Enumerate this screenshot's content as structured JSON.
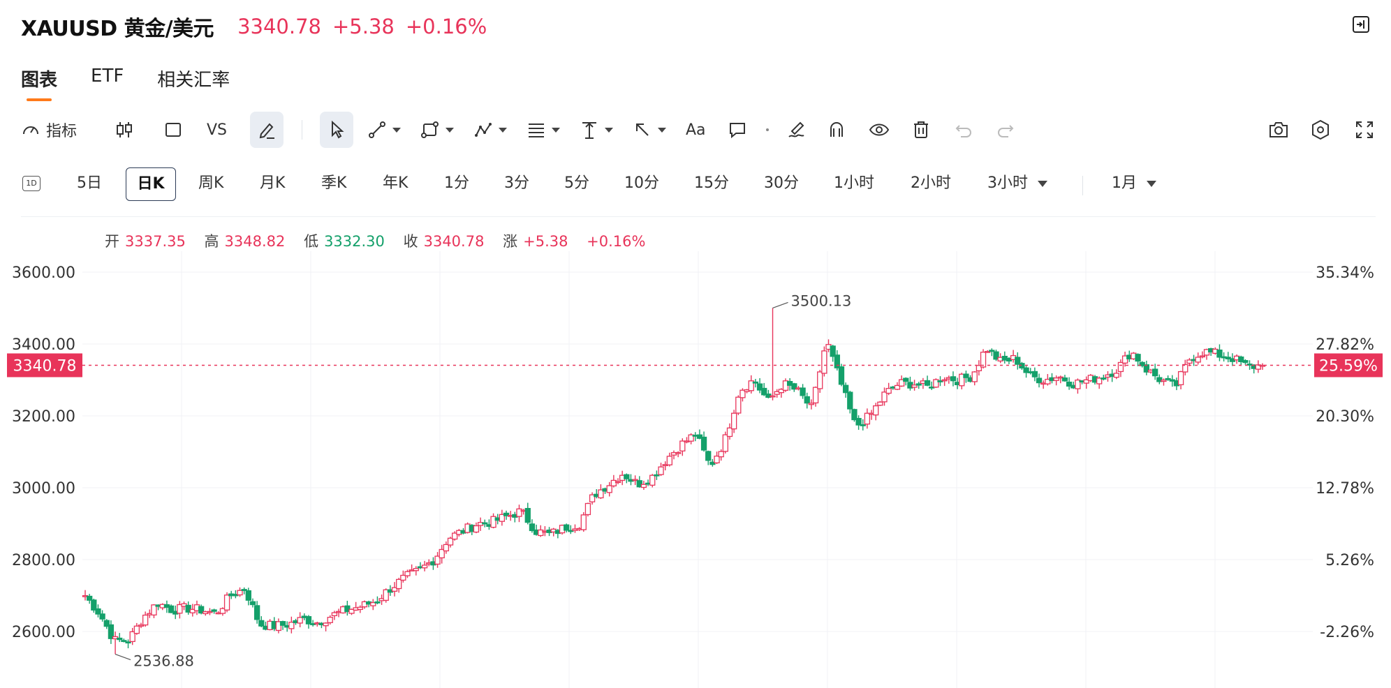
{
  "header": {
    "symbol": "XAUUSD 黄金/美元",
    "price": "3340.78",
    "change": "+5.38",
    "change_pct": "+0.16%",
    "collapse_icon": "collapse-panel-icon"
  },
  "tabs": [
    {
      "label": "图表",
      "active": true
    },
    {
      "label": "ETF",
      "active": false
    },
    {
      "label": "相关汇率",
      "active": false
    }
  ],
  "toolbar": {
    "indicators_label": "指标",
    "vs_label": "VS",
    "text_label": "Aa",
    "icons": [
      "gauge-icon",
      "candlestick-type-icon",
      "square-icon",
      "vs-compare",
      "draw-pen-icon",
      "cursor-icon",
      "trend-line-icon",
      "shape-icon",
      "pattern-icon",
      "fib-icon",
      "measure-icon",
      "arrow-icon",
      "text-icon",
      "comment-icon",
      "brush-icon",
      "magnet-icon",
      "eye-icon",
      "trash-icon",
      "undo-icon",
      "redo-icon",
      "camera-icon",
      "settings-icon",
      "fullscreen-icon"
    ]
  },
  "periods": {
    "icon_label": "1D",
    "items": [
      "5日",
      "日K",
      "周K",
      "月K",
      "季K",
      "年K",
      "1分",
      "3分",
      "5分",
      "10分",
      "15分",
      "30分",
      "1小时",
      "2小时",
      "3小时",
      "1月"
    ],
    "active": "日K"
  },
  "ohlc": {
    "open_label": "开",
    "open": "3337.35",
    "high_label": "高",
    "high": "3348.82",
    "low_label": "低",
    "low": "3332.30",
    "close_label": "收",
    "close": "3340.78",
    "chg_label": "涨",
    "chg": "+5.38",
    "chg_pct": "+0.16%"
  },
  "colors": {
    "up": "#e8345a",
    "down": "#14a06a",
    "accent": "#ff7a1a",
    "grid": "#f0f2f5"
  },
  "chart_data": {
    "type": "candlestick",
    "y_ticks_left": [
      "3600.00",
      "3400.00",
      "3200.00",
      "3000.00",
      "2800.00",
      "2600.00"
    ],
    "y_ticks_right": [
      "35.34%",
      "27.82%",
      "20.30%",
      "12.78%",
      "5.26%",
      "-2.26%"
    ],
    "ylim": [
      2500,
      3650
    ],
    "current_price": 3340.78,
    "current_price_label": "3340.78",
    "current_pct_label": "25.59%",
    "max_label": "3500.13",
    "min_label": "2536.88",
    "close_anchors": [
      2700,
      2650,
      2575,
      2575,
      2640,
      2680,
      2660,
      2665,
      2660,
      2650,
      2700,
      2720,
      2620,
      2615,
      2620,
      2635,
      2625,
      2645,
      2660,
      2670,
      2685,
      2720,
      2750,
      2770,
      2800,
      2860,
      2880,
      2900,
      2905,
      2920,
      2935,
      2880,
      2870,
      2890,
      2900,
      2980,
      3010,
      3040,
      3010,
      3030,
      3080,
      3120,
      3150,
      3060,
      3130,
      3270,
      3300,
      3240,
      3290,
      3270,
      3220,
      3410,
      3290,
      3170,
      3200,
      3260,
      3290,
      3290,
      3280,
      3310,
      3300,
      3310,
      3390,
      3350,
      3360,
      3310,
      3300,
      3310,
      3290,
      3300,
      3310,
      3330,
      3380,
      3330,
      3300,
      3280,
      3360,
      3380,
      3370,
      3360,
      3336,
      3341
    ],
    "max_index": 160,
    "min_index": 7,
    "count": 275
  }
}
